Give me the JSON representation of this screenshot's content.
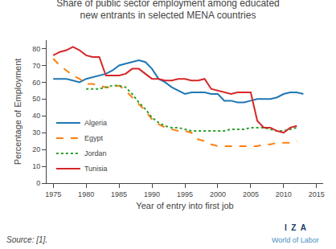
{
  "chart_data": {
    "type": "line",
    "title": "Share of public sector employment among educated\nnew entrants in selected MENA countries",
    "x_label": "Year of entry into first job",
    "y_label": "Percentage of Employment",
    "annotations": [
      {
        "text": "Source: [1]."
      },
      {
        "text": "I  Z  A",
        "color": "#1a3d6e"
      },
      {
        "text": "World of Labor",
        "color": "#4a90c4"
      }
    ],
    "xlim": [
      1974,
      2016
    ],
    "ylim": [
      0,
      85
    ],
    "xticks": [
      1975,
      1980,
      1985,
      1990,
      1995,
      2000,
      2005,
      2010,
      2015
    ],
    "yticks": [
      0,
      10,
      20,
      30,
      40,
      50,
      60,
      70,
      80
    ],
    "grid": false,
    "legend": "lower left",
    "series": [
      {
        "name": "Algeria",
        "line_style": "solid",
        "x": [
          1975,
          1976,
          1977,
          1978,
          1979,
          1980,
          1981,
          1982,
          1983,
          1984,
          1985,
          1986,
          1987,
          1988,
          1989,
          1990,
          1991,
          1992,
          1993,
          1994,
          1995,
          1996,
          1997,
          1998,
          1999,
          2000,
          2001,
          2002,
          2003,
          2004,
          2005,
          2006,
          2007,
          2008,
          2009,
          2010,
          2011,
          2012,
          2013
        ],
        "values": [
          62,
          62,
          62,
          61,
          60,
          62,
          63,
          64,
          65,
          67,
          70,
          71,
          72,
          73,
          72,
          68,
          62,
          60,
          57,
          55,
          53,
          54,
          54,
          54,
          53,
          53,
          49,
          49,
          48,
          48,
          49,
          50,
          50,
          50,
          51,
          53,
          54,
          54,
          53
        ]
      },
      {
        "name": "Egypt",
        "line_style": "dash",
        "x": [
          1975,
          1976,
          1977,
          1978,
          1979,
          1980,
          1981,
          1982,
          1983,
          1984,
          1985,
          1986,
          1987,
          1988,
          1989,
          1990,
          1991,
          1992,
          1993,
          1994,
          1995,
          1996,
          1997,
          1998,
          1999,
          2000,
          2001,
          2002,
          2003,
          2004,
          2005,
          2006,
          2007,
          2008,
          2009,
          2010,
          2011,
          2012
        ],
        "values": [
          74,
          70,
          67,
          64,
          62,
          59,
          59,
          58,
          57,
          57,
          58,
          55,
          51,
          47,
          43,
          38,
          35,
          33,
          32,
          31,
          31,
          30,
          26,
          25,
          23,
          22,
          22,
          22,
          22,
          22,
          22,
          22,
          23,
          23,
          24,
          24,
          24,
          25
        ]
      },
      {
        "name": "Jordan",
        "line_style": "dot",
        "x": [
          1980,
          1981,
          1982,
          1983,
          1984,
          1985,
          1986,
          1987,
          1988,
          1989,
          1990,
          1991,
          1992,
          1993,
          1994,
          1995,
          1996,
          1997,
          1998,
          1999,
          2000,
          2001,
          2002,
          2003,
          2004,
          2005,
          2006,
          2007,
          2008,
          2009,
          2010,
          2011,
          2012
        ],
        "values": [
          56,
          56,
          56,
          57,
          58,
          58,
          57,
          53,
          48,
          44,
          39,
          36,
          34,
          33,
          33,
          32,
          31,
          31,
          31,
          31,
          31,
          31,
          32,
          32,
          32,
          33,
          33,
          33,
          32,
          31,
          31,
          32,
          33
        ]
      },
      {
        "name": "Tunisia",
        "line_style": "solid",
        "x": [
          1975,
          1976,
          1977,
          1978,
          1979,
          1980,
          1981,
          1982,
          1983,
          1984,
          1985,
          1986,
          1987,
          1988,
          1989,
          1990,
          1991,
          1992,
          1993,
          1994,
          1995,
          1996,
          1997,
          1998,
          1999,
          2000,
          2001,
          2002,
          2003,
          2004,
          2005,
          2006,
          2007,
          2008,
          2009,
          2010,
          2011,
          2012
        ],
        "values": [
          76,
          78,
          79,
          81,
          79,
          76,
          75,
          75,
          64,
          64,
          64,
          65,
          68,
          68,
          65,
          62,
          62,
          61,
          61,
          62,
          62,
          61,
          61,
          62,
          56,
          55,
          54,
          53,
          54,
          54,
          54,
          37,
          33,
          33,
          31,
          30,
          33,
          34
        ]
      }
    ]
  }
}
